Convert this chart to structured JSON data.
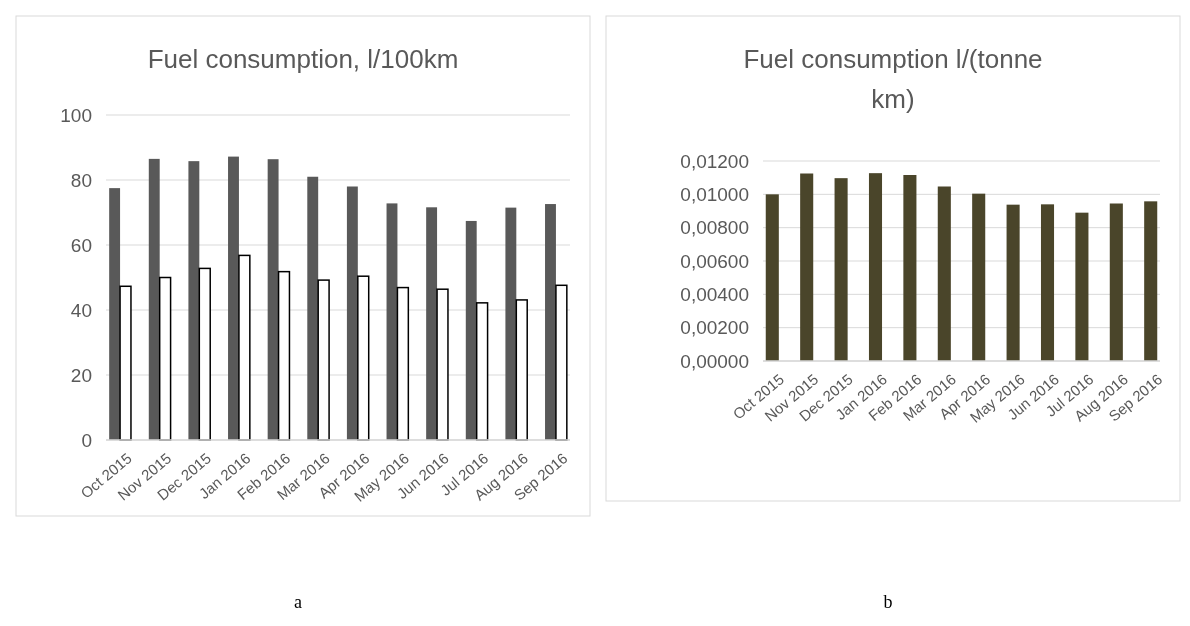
{
  "chart_data": [
    {
      "type": "bar",
      "title": "Fuel consumption, l/100km",
      "categories": [
        "Oct 2015",
        "Nov 2015",
        "Dec 2015",
        "Jan 2016",
        "Feb 2016",
        "Mar 2016",
        "Apr 2016",
        "May 2016",
        "Jun 2016",
        "Jul 2016",
        "Aug 2016",
        "Sep 2016"
      ],
      "series": [
        {
          "color": "#595959",
          "values": [
            77.5,
            86.5,
            85.8,
            87.2,
            86.4,
            81,
            78,
            72.8,
            71.6,
            67.4,
            71.5,
            72.6
          ]
        },
        {
          "color": "#ffffff",
          "values": [
            47.3,
            50,
            52.8,
            56.8,
            51.8,
            49.2,
            50.4,
            46.9,
            46.4,
            42.2,
            43.1,
            47.6
          ]
        }
      ],
      "ylim": [
        0,
        100
      ],
      "yticks": [
        0,
        20,
        40,
        60,
        80,
        100
      ],
      "grid": "y",
      "annotations": [
        "a"
      ]
    },
    {
      "type": "bar",
      "title": "Fuel consumption l/(tonne km)",
      "categories": [
        "Oct 2015",
        "Nov 2015",
        "Dec 2015",
        "Jan 2016",
        "Feb 2016",
        "Mar 2016",
        "Apr 2016",
        "May 2016",
        "Jun 2016",
        "Jul 2016",
        "Aug 2016",
        "Sep 2016"
      ],
      "series": [
        {
          "color": "#4a452a",
          "values": [
            0.01,
            0.01125,
            0.01097,
            0.01127,
            0.01116,
            0.01047,
            0.01004,
            0.00938,
            0.0094,
            0.0089,
            0.00945,
            0.00958
          ]
        }
      ],
      "ylim": [
        0,
        0.012
      ],
      "yticks": [
        {
          "value": 0,
          "label": "0,00000"
        },
        {
          "value": 0.002,
          "label": "0,00200"
        },
        {
          "value": 0.004,
          "label": "0,00400"
        },
        {
          "value": 0.006,
          "label": "0,00600"
        },
        {
          "value": 0.008,
          "label": "0,00800"
        },
        {
          "value": 0.01,
          "label": "0,01000"
        },
        {
          "value": 0.012,
          "label": "0,01200"
        }
      ],
      "grid": "y",
      "annotations": [
        "b"
      ]
    }
  ]
}
